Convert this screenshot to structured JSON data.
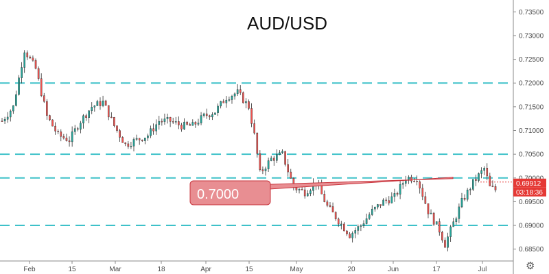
{
  "chart_data": {
    "type": "candlestick",
    "title": "AUD/USD",
    "xlabel": "",
    "ylabel": "",
    "ylim": [
      0.6825,
      0.7375
    ],
    "y_ticks": [
      "0.68500",
      "0.69000",
      "0.69500",
      "0.70000",
      "0.70500",
      "0.71000",
      "0.71500",
      "0.72000",
      "0.72500",
      "0.73000",
      "0.73500"
    ],
    "x_ticks": [
      "Feb",
      "15",
      "Mar",
      "18",
      "Apr",
      "15",
      "May",
      "20",
      "Jun",
      "17",
      "Jul"
    ],
    "horizontal_levels": [
      0.72,
      0.705,
      0.7,
      0.69
    ],
    "annotation": {
      "text": "0.7000",
      "level": 0.7
    },
    "last_price": "0.69912",
    "countdown": "03:18:36",
    "colors": {
      "up": "#26a69a",
      "down": "#ef5350",
      "level_line": "#3ec1c9",
      "callout": "#d96a6e",
      "callout_fill": "#e88e92"
    },
    "trend": [
      [
        0,
        0.712
      ],
      [
        4,
        0.715
      ],
      [
        8,
        0.727
      ],
      [
        12,
        0.723
      ],
      [
        16,
        0.713
      ],
      [
        20,
        0.709
      ],
      [
        24,
        0.708
      ],
      [
        28,
        0.712
      ],
      [
        32,
        0.715
      ],
      [
        36,
        0.716
      ],
      [
        40,
        0.711
      ],
      [
        44,
        0.707
      ],
      [
        48,
        0.708
      ],
      [
        52,
        0.709
      ],
      [
        56,
        0.712
      ],
      [
        60,
        0.712
      ],
      [
        64,
        0.711
      ],
      [
        68,
        0.711
      ],
      [
        72,
        0.713
      ],
      [
        76,
        0.714
      ],
      [
        80,
        0.717
      ],
      [
        84,
        0.718
      ],
      [
        88,
        0.715
      ],
      [
        90,
        0.709
      ],
      [
        92,
        0.701
      ],
      [
        96,
        0.704
      ],
      [
        100,
        0.705
      ],
      [
        104,
        0.698
      ],
      [
        108,
        0.697
      ],
      [
        112,
        0.699
      ],
      [
        116,
        0.694
      ],
      [
        120,
        0.691
      ],
      [
        124,
        0.688
      ],
      [
        128,
        0.69
      ],
      [
        132,
        0.693
      ],
      [
        136,
        0.695
      ],
      [
        140,
        0.696
      ],
      [
        144,
        0.7
      ],
      [
        148,
        0.7
      ],
      [
        152,
        0.693
      ],
      [
        156,
        0.689
      ],
      [
        158,
        0.686
      ],
      [
        160,
        0.689
      ],
      [
        164,
        0.695
      ],
      [
        168,
        0.699
      ],
      [
        172,
        0.702
      ],
      [
        174,
        0.698
      ],
      [
        176,
        0.6975
      ]
    ]
  }
}
